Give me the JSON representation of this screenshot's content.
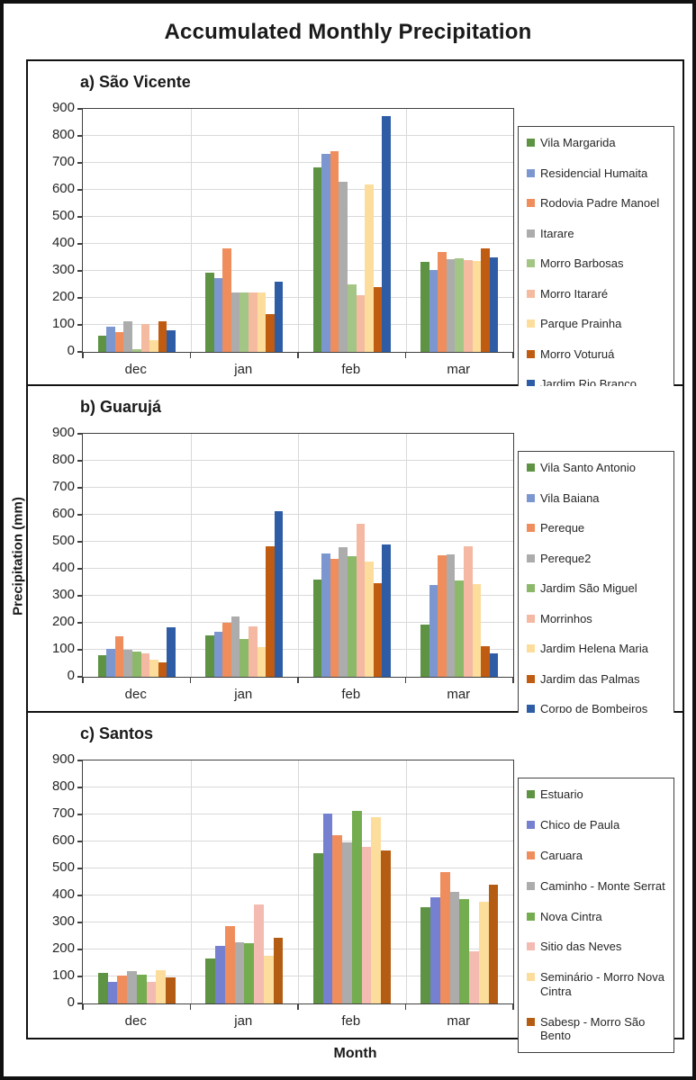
{
  "title": "Accumulated Monthly Precipitation",
  "ylabel": "Precipitation (mm)",
  "xlabel": "Month",
  "axis_color": "#404040",
  "grid_color": "#d9d9d9",
  "chart_data": [
    {
      "type": "bar",
      "panel_label": "a) São Vicente",
      "categories": [
        "dec",
        "jan",
        "feb",
        "mar"
      ],
      "ylim": [
        0,
        900
      ],
      "ytick_step": 100,
      "grid": true,
      "legend_position": "right",
      "series": [
        {
          "name": "Vila Margarida",
          "color": "#5E9343",
          "values": [
            60,
            295,
            685,
            335
          ]
        },
        {
          "name": "Residencial Humaita",
          "color": "#7C97D0",
          "values": [
            95,
            275,
            735,
            305
          ]
        },
        {
          "name": "Rodovia Padre Manoel",
          "color": "#EF8D5D",
          "values": [
            75,
            385,
            745,
            370
          ]
        },
        {
          "name": "Itarare",
          "color": "#ACACAC",
          "values": [
            115,
            220,
            630,
            342
          ]
        },
        {
          "name": "Morro Barbosas",
          "color": "#A3C585",
          "values": [
            10,
            220,
            250,
            348
          ]
        },
        {
          "name": "Morro Itararé",
          "color": "#F4BBA1",
          "values": [
            105,
            220,
            210,
            340
          ]
        },
        {
          "name": "Parque Prainha",
          "color": "#FCDD9C",
          "values": [
            45,
            220,
            620,
            338
          ]
        },
        {
          "name": "Morro Voturuá",
          "color": "#C05C12",
          "values": [
            115,
            140,
            240,
            385
          ]
        },
        {
          "name": "Jardim Rio Branco",
          "color": "#2E5DA6",
          "values": [
            80,
            260,
            875,
            350
          ]
        }
      ]
    },
    {
      "type": "bar",
      "panel_label": "b) Guarujá",
      "categories": [
        "dec",
        "jan",
        "feb",
        "mar"
      ],
      "ylim": [
        0,
        900
      ],
      "ytick_step": 100,
      "grid": true,
      "legend_position": "right",
      "series": [
        {
          "name": "Vila Santo Antonio",
          "color": "#5E9343",
          "values": [
            80,
            155,
            360,
            193
          ]
        },
        {
          "name": "Vila Baiana",
          "color": "#7C97D0",
          "values": [
            105,
            168,
            458,
            340
          ]
        },
        {
          "name": "Pereque",
          "color": "#EF8D5D",
          "values": [
            150,
            200,
            438,
            450
          ]
        },
        {
          "name": "Pereque2",
          "color": "#ACACAC",
          "values": [
            100,
            222,
            480,
            455
          ]
        },
        {
          "name": "Jardim São Miguel",
          "color": "#8CB969",
          "values": [
            95,
            140,
            448,
            358
          ]
        },
        {
          "name": "Morrinhos",
          "color": "#F4B8A3",
          "values": [
            88,
            188,
            568,
            482
          ]
        },
        {
          "name": "Jardim Helena Maria",
          "color": "#FCDD9C",
          "values": [
            65,
            110,
            428,
            343
          ]
        },
        {
          "name": "Jardim das Palmas",
          "color": "#C05C12",
          "values": [
            55,
            483,
            348,
            113
          ]
        },
        {
          "name": "Corpo de Bombeiros",
          "color": "#2E5DA6",
          "values": [
            183,
            612,
            490,
            88
          ]
        }
      ]
    },
    {
      "type": "bar",
      "panel_label": "c) Santos",
      "categories": [
        "dec",
        "jan",
        "feb",
        "mar"
      ],
      "ylim": [
        0,
        900
      ],
      "ytick_step": 100,
      "grid": true,
      "legend_position": "right",
      "series": [
        {
          "name": "Estuario",
          "color": "#5E9343",
          "values": [
            115,
            168,
            558,
            358
          ]
        },
        {
          "name": "Chico de Paula",
          "color": "#7580D0",
          "values": [
            80,
            213,
            703,
            395
          ]
        },
        {
          "name": "Caruara",
          "color": "#EF8D5D",
          "values": [
            105,
            287,
            625,
            488
          ]
        },
        {
          "name": "Caminho - Monte Serrat",
          "color": "#ACACAC",
          "values": [
            120,
            228,
            598,
            415
          ]
        },
        {
          "name": "Nova Cintra",
          "color": "#74AC50",
          "values": [
            108,
            222,
            713,
            387
          ]
        },
        {
          "name": "Sitio das Neves",
          "color": "#F3BBB1",
          "values": [
            80,
            368,
            580,
            192
          ]
        },
        {
          "name": "Seminário - Morro Nova Cintra",
          "color": "#FCDD9C",
          "values": [
            122,
            178,
            690,
            378
          ]
        },
        {
          "name": "Sabesp - Morro São Bento",
          "color": "#B55C14",
          "values": [
            98,
            243,
            567,
            440
          ]
        }
      ]
    }
  ]
}
